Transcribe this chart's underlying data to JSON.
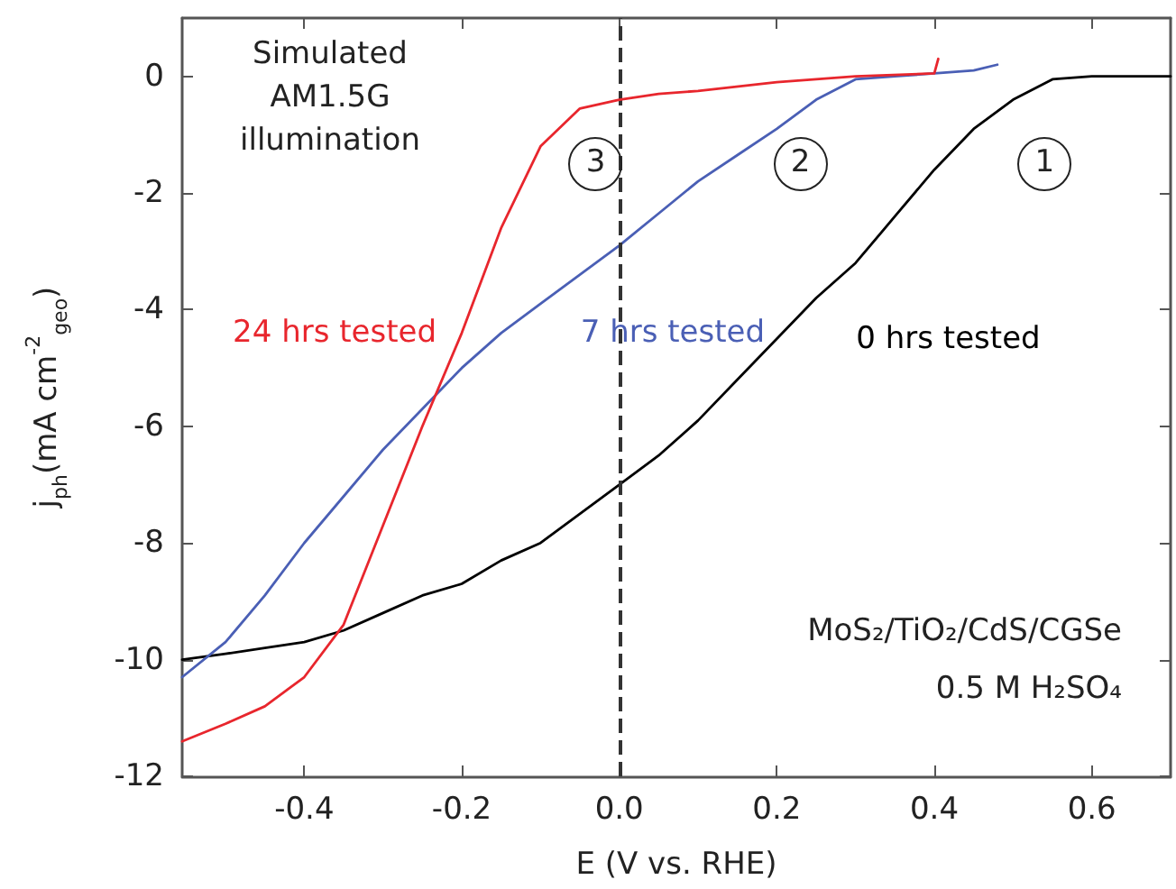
{
  "chart_data": {
    "type": "line",
    "xlabel": "E (V vs. RHE)",
    "ylabel": "j$_{ph}$(mA cm$^{-2}$$_{geo}$)",
    "xlim": [
      -0.555,
      0.7
    ],
    "ylim": [
      -12,
      1
    ],
    "xticks": [
      -0.4,
      -0.2,
      {
        "value": 0,
        "label": "0.0"
      },
      0.2,
      0.4,
      0.6
    ],
    "yticks": [
      -12,
      -10,
      -8,
      -6,
      -4,
      -2,
      0
    ],
    "grid": false,
    "legend": false,
    "marker": "none",
    "line_style": "solid",
    "series": [
      {
        "name": "0 hrs tested",
        "color": "#000000",
        "x": [
          -0.555,
          -0.5,
          -0.45,
          -0.4,
          -0.35,
          -0.3,
          -0.25,
          -0.2,
          -0.15,
          -0.1,
          -0.05,
          0,
          0.05,
          0.1,
          0.15,
          0.2,
          0.25,
          0.3,
          0.35,
          0.4,
          0.45,
          0.5,
          0.55,
          0.6,
          0.65,
          0.7
        ],
        "values": [
          -10.0,
          -9.9,
          -9.8,
          -9.7,
          -9.5,
          -9.2,
          -8.9,
          -8.7,
          -8.3,
          -8.0,
          -7.5,
          -7.0,
          -6.5,
          -5.9,
          -5.2,
          -4.5,
          -3.8,
          -3.2,
          -2.4,
          -1.6,
          -0.9,
          -0.4,
          -0.05,
          0,
          0,
          0
        ]
      },
      {
        "name": "7 hrs tested",
        "color": "#4a5fb5",
        "x": [
          -0.555,
          -0.5,
          -0.45,
          -0.4,
          -0.35,
          -0.3,
          -0.25,
          -0.2,
          -0.15,
          -0.1,
          -0.05,
          0,
          0.05,
          0.1,
          0.15,
          0.2,
          0.25,
          0.3,
          0.35,
          0.4,
          0.45,
          0.48
        ],
        "values": [
          -10.3,
          -9.7,
          -8.9,
          -8.0,
          -7.2,
          -6.4,
          -5.7,
          -5.0,
          -4.4,
          -3.9,
          -3.4,
          -2.9,
          -2.35,
          -1.8,
          -1.35,
          -0.9,
          -0.4,
          -0.05,
          0.0,
          0.05,
          0.1,
          0.2
        ]
      },
      {
        "name": "24 hrs tested",
        "color": "#e8262d",
        "x": [
          -0.555,
          -0.5,
          -0.45,
          -0.4,
          -0.35,
          -0.3,
          -0.25,
          -0.2,
          -0.15,
          -0.1,
          -0.05,
          0,
          0.05,
          0.1,
          0.2,
          0.3,
          0.4,
          0.405
        ],
        "values": [
          -11.4,
          -11.1,
          -10.8,
          -10.3,
          -9.4,
          -7.7,
          -6.0,
          -4.4,
          -2.6,
          -1.2,
          -0.55,
          -0.4,
          -0.3,
          -0.25,
          -0.1,
          0.0,
          0.05,
          0.3
        ]
      }
    ],
    "ref_lines": [
      {
        "axis": "x",
        "value": 0,
        "color": "#333333",
        "line_style": "dashed"
      }
    ],
    "annotations": [
      "Simulated AM1.5G illumination",
      "MoS₂/TiO₂/CdS/CGSe",
      "0.5 M H₂SO₄",
      {
        "text": "3",
        "x": -0.03,
        "y": -1.5
      },
      {
        "text": "2",
        "x": 0.23,
        "y": -1.5
      },
      {
        "text": "1",
        "x": 0.54,
        "y": -1.5
      }
    ]
  }
}
